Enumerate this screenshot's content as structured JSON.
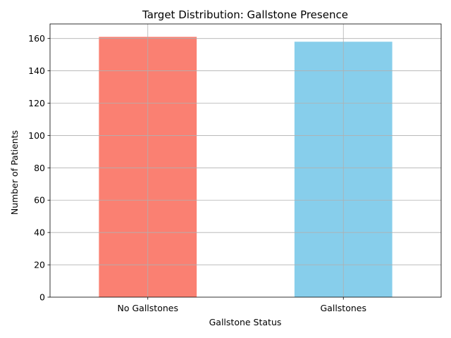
{
  "chart_data": {
    "type": "bar",
    "title": "Target Distribution: Gallstone Presence",
    "xlabel": "Gallstone Status",
    "ylabel": "Number of Patients",
    "categories": [
      "No Gallstones",
      "Gallstones"
    ],
    "values": [
      161,
      158
    ],
    "colors": [
      "#fa8072",
      "#87ceeb"
    ],
    "ylim": [
      0,
      169
    ],
    "yticks": [
      0,
      20,
      40,
      60,
      80,
      100,
      120,
      140,
      160
    ],
    "grid": true,
    "legend": "none"
  }
}
